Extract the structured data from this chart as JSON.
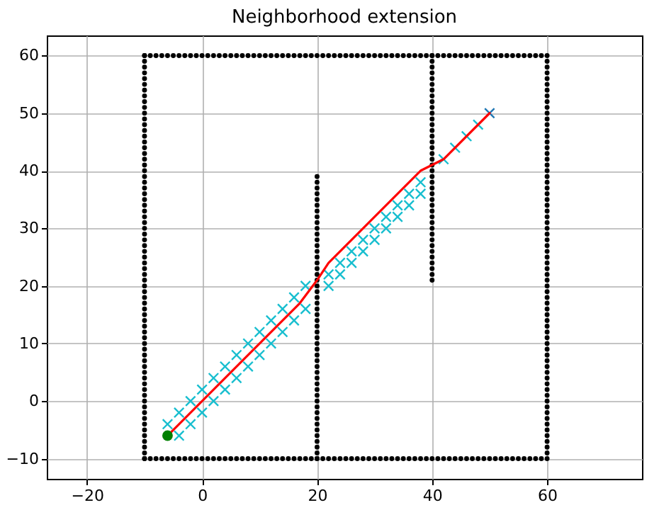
{
  "chart_data": {
    "type": "scatter",
    "title": "Neighborhood extension",
    "xlim": [
      -27,
      76.5
    ],
    "ylim": [
      -13.5,
      63.5
    ],
    "xticks": [
      -20,
      0,
      20,
      40,
      60
    ],
    "yticks": [
      -10,
      0,
      10,
      20,
      30,
      40,
      50,
      60
    ],
    "grid": true,
    "series": [
      {
        "color": "#000000",
        "marker": "circle",
        "x": [
          -10,
          -9,
          -8,
          -7,
          -6,
          -5,
          -4,
          -3,
          -2,
          -1,
          0,
          1,
          2,
          3,
          4,
          5,
          6,
          7,
          8,
          9,
          10,
          11,
          12,
          13,
          14,
          15,
          16,
          17,
          18,
          19,
          20,
          21,
          22,
          23,
          24,
          25,
          26,
          27,
          28,
          29,
          30,
          31,
          32,
          33,
          34,
          35,
          36,
          37,
          38,
          39,
          40,
          41,
          42,
          43,
          44,
          45,
          46,
          47,
          48,
          49,
          50,
          51,
          52,
          53,
          54,
          55,
          56,
          57,
          58,
          59,
          60,
          60,
          60,
          60,
          60,
          60,
          60,
          60,
          60,
          60,
          60,
          60,
          60,
          60,
          60,
          60,
          60,
          60,
          60,
          60,
          60,
          60,
          60,
          60,
          60,
          60,
          60,
          60,
          60,
          60,
          60,
          60,
          60,
          60,
          60,
          60,
          60,
          60,
          60,
          60,
          60,
          60,
          60,
          60,
          60,
          60,
          60,
          60,
          60,
          60,
          60,
          60,
          60,
          60,
          60,
          60,
          60,
          60,
          60,
          60,
          60,
          60,
          60,
          60,
          60,
          60,
          60,
          60,
          60,
          60,
          -10,
          -9,
          -8,
          -7,
          -6,
          -5,
          -4,
          -3,
          -2,
          -1,
          0,
          1,
          2,
          3,
          4,
          5,
          6,
          7,
          8,
          9,
          10,
          11,
          12,
          13,
          14,
          15,
          16,
          17,
          18,
          19,
          20,
          21,
          22,
          23,
          24,
          25,
          26,
          27,
          28,
          29,
          30,
          31,
          32,
          33,
          34,
          35,
          36,
          37,
          38,
          39,
          40,
          41,
          42,
          43,
          44,
          45,
          46,
          47,
          48,
          49,
          50,
          51,
          52,
          53,
          54,
          55,
          56,
          57,
          58,
          59,
          60,
          -10,
          -10,
          -10,
          -10,
          -10,
          -10,
          -10,
          -10,
          -10,
          -10,
          -10,
          -10,
          -10,
          -10,
          -10,
          -10,
          -10,
          -10,
          -10,
          -10,
          -10,
          -10,
          -10,
          -10,
          -10,
          -10,
          -10,
          -10,
          -10,
          -10,
          -10,
          -10,
          -10,
          -10,
          -10,
          -10,
          -10,
          -10,
          -10,
          -10,
          -10,
          -10,
          -10,
          -10,
          -10,
          -10,
          -10,
          -10,
          -10,
          -10,
          -10,
          -10,
          -10,
          -10,
          -10,
          -10,
          -10,
          -10,
          -10,
          -10,
          -10,
          -10,
          -10,
          -10,
          -10,
          -10,
          -10,
          -10,
          -10,
          -10,
          -10,
          20,
          20,
          20,
          20,
          20,
          20,
          20,
          20,
          20,
          20,
          20,
          20,
          20,
          20,
          20,
          20,
          20,
          20,
          20,
          20,
          20,
          20,
          20,
          20,
          20,
          20,
          20,
          20,
          20,
          20,
          20,
          20,
          20,
          20,
          20,
          20,
          20,
          20,
          20,
          20,
          20,
          20,
          20,
          20,
          20,
          20,
          20,
          20,
          20,
          20,
          40,
          40,
          40,
          40,
          40,
          40,
          40,
          40,
          40,
          40,
          40,
          40,
          40,
          40,
          40,
          40,
          40,
          40,
          40,
          40,
          40,
          40,
          40,
          40,
          40,
          40,
          40,
          40,
          40,
          40,
          40,
          40,
          40,
          40,
          40,
          40,
          40,
          40,
          40,
          40
        ],
        "values": [
          -10,
          -10,
          -10,
          -10,
          -10,
          -10,
          -10,
          -10,
          -10,
          -10,
          -10,
          -10,
          -10,
          -10,
          -10,
          -10,
          -10,
          -10,
          -10,
          -10,
          -10,
          -10,
          -10,
          -10,
          -10,
          -10,
          -10,
          -10,
          -10,
          -10,
          -10,
          -10,
          -10,
          -10,
          -10,
          -10,
          -10,
          -10,
          -10,
          -10,
          -10,
          -10,
          -10,
          -10,
          -10,
          -10,
          -10,
          -10,
          -10,
          -10,
          -10,
          -10,
          -10,
          -10,
          -10,
          -10,
          -10,
          -10,
          -10,
          -10,
          -10,
          -10,
          -10,
          -10,
          -10,
          -10,
          -10,
          -10,
          -10,
          -10,
          -10,
          -9,
          -8,
          -7,
          -6,
          -5,
          -4,
          -3,
          -2,
          -1,
          0,
          1,
          2,
          3,
          4,
          5,
          6,
          7,
          8,
          9,
          10,
          11,
          12,
          13,
          14,
          15,
          16,
          17,
          18,
          19,
          20,
          21,
          22,
          23,
          24,
          25,
          26,
          27,
          28,
          29,
          30,
          31,
          32,
          33,
          34,
          35,
          36,
          37,
          38,
          39,
          40,
          41,
          42,
          43,
          44,
          45,
          46,
          47,
          48,
          49,
          50,
          51,
          52,
          53,
          54,
          55,
          56,
          57,
          58,
          59,
          60,
          60,
          60,
          60,
          60,
          60,
          60,
          60,
          60,
          60,
          60,
          60,
          60,
          60,
          60,
          60,
          60,
          60,
          60,
          60,
          60,
          60,
          60,
          60,
          60,
          60,
          60,
          60,
          60,
          60,
          60,
          60,
          60,
          60,
          60,
          60,
          60,
          60,
          60,
          60,
          60,
          60,
          60,
          60,
          60,
          60,
          60,
          60,
          60,
          60,
          60,
          60,
          60,
          60,
          60,
          60,
          60,
          60,
          60,
          60,
          60,
          60,
          60,
          60,
          60,
          60,
          60,
          60,
          60,
          60,
          60,
          -10,
          -9,
          -8,
          -7,
          -6,
          -5,
          -4,
          -3,
          -2,
          -1,
          0,
          1,
          2,
          3,
          4,
          5,
          6,
          7,
          8,
          9,
          10,
          11,
          12,
          13,
          14,
          15,
          16,
          17,
          18,
          19,
          20,
          21,
          22,
          23,
          24,
          25,
          26,
          27,
          28,
          29,
          30,
          31,
          32,
          33,
          34,
          35,
          36,
          37,
          38,
          39,
          40,
          41,
          42,
          43,
          44,
          45,
          46,
          47,
          48,
          49,
          50,
          51,
          52,
          53,
          54,
          55,
          56,
          57,
          58,
          59,
          60,
          -10,
          -9,
          -8,
          -7,
          -6,
          -5,
          -4,
          -3,
          -2,
          -1,
          0,
          1,
          2,
          3,
          4,
          5,
          6,
          7,
          8,
          9,
          10,
          11,
          12,
          13,
          14,
          15,
          16,
          17,
          18,
          19,
          20,
          21,
          22,
          23,
          24,
          25,
          26,
          27,
          28,
          29,
          30,
          31,
          32,
          33,
          34,
          35,
          36,
          37,
          38,
          39,
          21,
          22,
          23,
          24,
          25,
          26,
          27,
          28,
          29,
          30,
          31,
          32,
          33,
          34,
          35,
          36,
          37,
          38,
          39,
          40,
          41,
          42,
          43,
          44,
          45,
          46,
          47,
          48,
          49,
          50,
          51,
          52,
          53,
          54,
          55,
          56,
          57,
          58,
          59,
          60
        ]
      },
      {
        "color": "#17becf",
        "marker": "cross",
        "x": [
          -6,
          -4,
          -4,
          -2,
          -2,
          0,
          0,
          2,
          2,
          4,
          4,
          6,
          6,
          8,
          8,
          10,
          10,
          12,
          12,
          14,
          14,
          16,
          16,
          18,
          18,
          22,
          22,
          24,
          24,
          26,
          26,
          28,
          28,
          30,
          30,
          32,
          32,
          34,
          34,
          36,
          36,
          38,
          38,
          42,
          44,
          46,
          48
        ],
        "values": [
          -4,
          -6,
          -2,
          -4,
          0,
          -2,
          2,
          0,
          4,
          2,
          6,
          4,
          8,
          6,
          10,
          8,
          12,
          10,
          14,
          12,
          16,
          14,
          18,
          16,
          20,
          20,
          22,
          22,
          24,
          24,
          26,
          26,
          28,
          28,
          30,
          30,
          32,
          32,
          34,
          34,
          36,
          36,
          38,
          42,
          44,
          46,
          48
        ]
      },
      {
        "color": "#1f77b4",
        "marker": "cross",
        "x": [
          50
        ],
        "values": [
          50
        ]
      },
      {
        "type": "line",
        "color": "#ff0000",
        "x": [
          -6,
          17,
          20,
          22,
          38,
          42,
          50
        ],
        "values": [
          -6,
          17,
          21,
          24,
          40,
          42,
          50
        ]
      },
      {
        "color": "#008000",
        "marker": "circle",
        "x": [
          -6
        ],
        "values": [
          -6
        ]
      }
    ]
  }
}
